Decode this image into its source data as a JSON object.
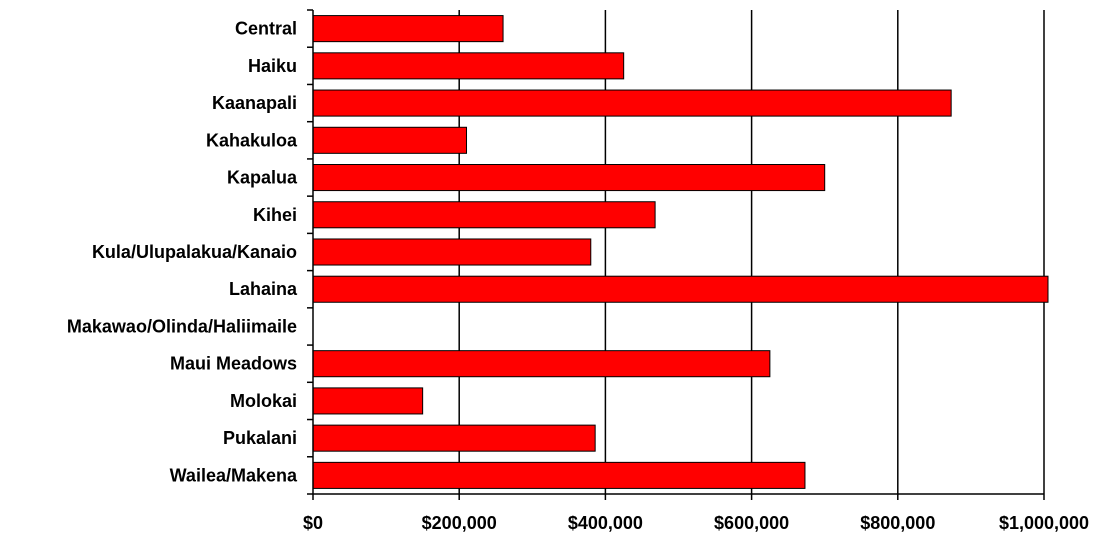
{
  "chart_data": {
    "type": "bar",
    "orientation": "horizontal",
    "title": "",
    "xlabel": "",
    "ylabel": "",
    "categories": [
      "Central",
      "Haiku",
      "Kaanapali",
      "Kahakuloa",
      "Kapalua",
      "Kihei",
      "Kula/Ulupalakua/Kanaio",
      "Lahaina",
      "Makawao/Olinda/Haliimaile",
      "Maui Meadows",
      "Molokai",
      "Pukalani",
      "Wailea/Makena"
    ],
    "values": [
      260000,
      425000,
      873000,
      210000,
      700000,
      468000,
      380000,
      1010000,
      0,
      625000,
      150000,
      386000,
      673000
    ],
    "xlim": [
      0,
      1000000
    ],
    "xticks": [
      0,
      200000,
      400000,
      600000,
      800000,
      1000000
    ],
    "xtick_labels": [
      "$0",
      "$200,000",
      "$400,000",
      "$600,000",
      "$800,000",
      "$1,000,000"
    ],
    "grid": "vertical major gridlines",
    "legend": "none",
    "colors": {
      "bar_fill": "#ff0000",
      "bar_stroke": "#000000",
      "gridline": "#000000"
    }
  }
}
